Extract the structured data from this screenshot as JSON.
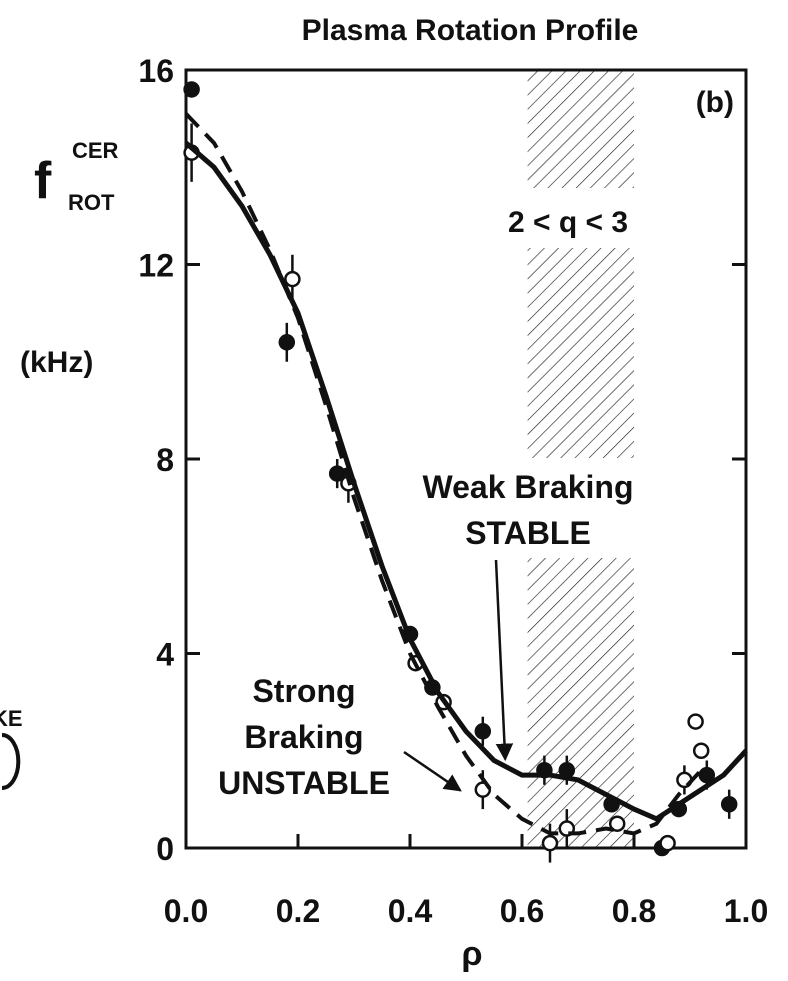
{
  "chart_data": {
    "type": "scatter",
    "title": "Plasma Rotation Profile",
    "y_label": {
      "main": "f",
      "sup": "CER",
      "sub": "ROT",
      "unit": "(kHz)"
    },
    "x_label": "ρ",
    "panel_label": "(b)",
    "xlim": [
      0,
      1.0
    ],
    "ylim": [
      0,
      16
    ],
    "xticks": [
      {
        "value": 0,
        "label": "0.0"
      },
      0.2,
      0.4,
      0.6,
      0.8,
      {
        "value": 1.0,
        "label": "1.0"
      }
    ],
    "yticks": [
      0,
      4,
      8,
      12,
      16
    ],
    "shaded_band": {
      "x": [
        0.61,
        0.8
      ],
      "label": "2 < q < 3"
    },
    "annotations": [
      {
        "lines": [
          "Weak Braking",
          "STABLE"
        ],
        "point": [
          0.57,
          1.7
        ]
      },
      {
        "lines": [
          "Strong",
          "Braking",
          "UNSTABLE"
        ],
        "point": [
          0.49,
          1.1
        ]
      }
    ],
    "clipped_text": "KE",
    "series": [
      {
        "marker": "filled",
        "color": "#111111",
        "x": [
          0.01,
          0.18,
          0.27,
          0.4,
          0.44,
          0.53,
          0.64,
          0.68,
          0.76,
          0.85,
          0.88,
          0.93,
          0.97
        ],
        "values": [
          15.6,
          10.4,
          7.7,
          4.4,
          3.3,
          2.4,
          1.6,
          1.6,
          0.9,
          0.0,
          0.8,
          1.5,
          0.9
        ],
        "errors": [
          null,
          0.4,
          0.3,
          null,
          null,
          0.3,
          0.3,
          0.3,
          null,
          null,
          null,
          0.3,
          0.3
        ]
      },
      {
        "marker": "open",
        "color": "#111111",
        "x": [
          0.01,
          0.19,
          0.29,
          0.41,
          0.46,
          0.53,
          0.65,
          0.68,
          0.77,
          0.86,
          0.89,
          0.92,
          0.91
        ],
        "values": [
          14.3,
          11.7,
          7.5,
          3.8,
          3.0,
          1.2,
          0.1,
          0.4,
          0.5,
          0.1,
          1.4,
          2.0,
          2.6
        ],
        "errors": [
          0.6,
          0.5,
          0.4,
          null,
          null,
          0.4,
          0.4,
          0.4,
          null,
          null,
          0.3,
          null,
          null
        ]
      },
      {
        "line": "solid",
        "color": "#111111",
        "x": [
          0,
          0.05,
          0.1,
          0.15,
          0.2,
          0.25,
          0.3,
          0.35,
          0.4,
          0.45,
          0.5,
          0.55,
          0.6,
          0.65,
          0.7,
          0.75,
          0.8,
          0.84,
          0.88,
          0.92,
          0.96,
          1.0
        ],
        "values": [
          14.5,
          14.0,
          13.2,
          12.2,
          11.0,
          9.3,
          7.5,
          5.8,
          4.3,
          3.2,
          2.4,
          1.8,
          1.5,
          1.5,
          1.4,
          1.1,
          0.8,
          0.6,
          0.9,
          1.2,
          1.5,
          2.0
        ]
      },
      {
        "line": "dashed",
        "color": "#111111",
        "x": [
          0,
          0.05,
          0.1,
          0.15,
          0.2,
          0.25,
          0.3,
          0.35,
          0.4,
          0.45,
          0.5,
          0.55,
          0.6,
          0.65,
          0.7,
          0.75,
          0.8,
          0.84,
          0.88,
          0.92
        ],
        "values": [
          15.1,
          14.5,
          13.5,
          12.3,
          10.9,
          9.1,
          7.2,
          5.5,
          4.0,
          2.9,
          1.9,
          1.1,
          0.6,
          0.3,
          0.3,
          0.4,
          0.3,
          0.5,
          1.1,
          1.6
        ]
      }
    ]
  }
}
